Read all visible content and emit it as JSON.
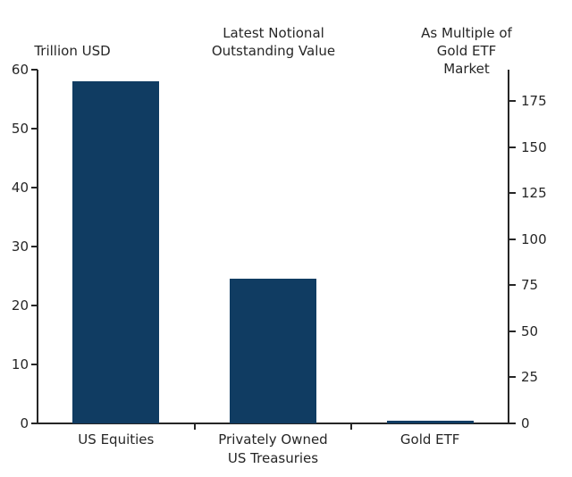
{
  "chart_data": {
    "type": "bar",
    "title_center": "Latest Notional\nOutstanding Value",
    "left_axis_title": "Trillion USD",
    "right_axis_title": "As Multiple of\nGold ETF Market",
    "categories": [
      "US Equities",
      "Privately Owned\nUS Treasuries",
      "Gold ETF"
    ],
    "values_trillion_usd": [
      58,
      24.5,
      0.5
    ],
    "bar_color": "#103c62",
    "left_axis": {
      "ticks": [
        0,
        10,
        20,
        30,
        40,
        50,
        60
      ],
      "ylim": [
        0,
        60
      ]
    },
    "right_axis": {
      "ticks": [
        0,
        25,
        50,
        75,
        100,
        125,
        150,
        175
      ],
      "ylim": [
        0,
        192
      ]
    },
    "grid": false,
    "legend": "none"
  }
}
